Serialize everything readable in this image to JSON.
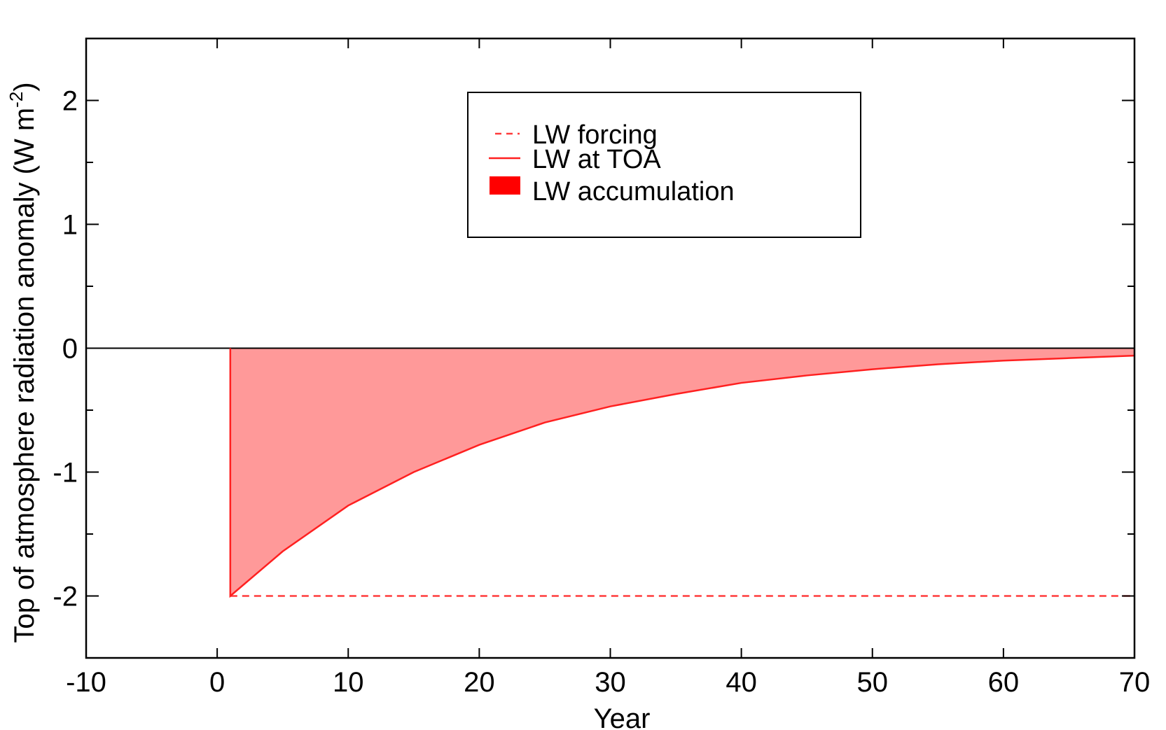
{
  "chart_data": {
    "type": "area",
    "xlabel": "Year",
    "ylabel": "Top of atmosphere radiation anomaly (W m",
    "ylabel_sup": "-2",
    "ylabel_close": ")",
    "xlim": [
      -10,
      70
    ],
    "ylim": [
      -2.5,
      2.5
    ],
    "x_ticks": [
      -10,
      0,
      10,
      20,
      30,
      40,
      50,
      60,
      70
    ],
    "x_tick_labels": [
      "-10",
      "0",
      "10",
      "20",
      "30",
      "40",
      "50",
      "60",
      "70"
    ],
    "y_ticks": [
      -2,
      -1,
      0,
      1,
      2
    ],
    "y_tick_labels": [
      "-2",
      "-1",
      "0",
      "1",
      "2"
    ],
    "y_minor_ticks": [
      -2.5,
      -1.5,
      -0.5,
      0.5,
      1.5,
      2.5
    ],
    "grid": false,
    "legend_position": "top-center",
    "zero_line": true,
    "series": [
      {
        "name": "LW forcing",
        "style": "dashed",
        "color": "#ff3b3b",
        "x": [
          1,
          70
        ],
        "y": [
          -2,
          -2
        ]
      },
      {
        "name": "LW at TOA",
        "style": "solid",
        "color": "#ff2020",
        "x": [
          -10,
          1,
          1,
          5,
          10,
          15,
          20,
          25,
          30,
          35,
          40,
          45,
          50,
          55,
          60,
          65,
          70
        ],
        "y": [
          0,
          0,
          -2,
          -1.64,
          -1.27,
          -1.0,
          -0.78,
          -0.6,
          -0.47,
          -0.37,
          -0.28,
          -0.22,
          -0.17,
          -0.13,
          -0.1,
          -0.08,
          -0.06
        ]
      },
      {
        "name": "LW accumulation",
        "style": "fill",
        "color": "#ff9999",
        "legend_color": "#ff0000"
      }
    ]
  }
}
